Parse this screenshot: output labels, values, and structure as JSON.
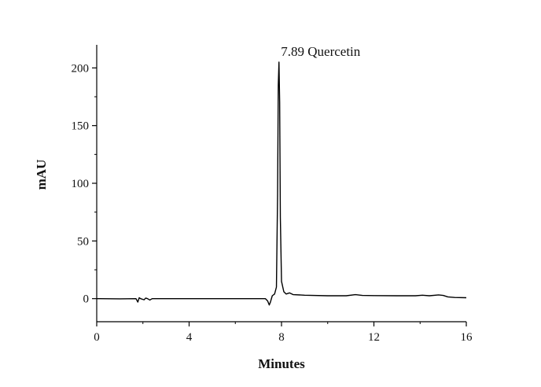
{
  "chart_data": {
    "type": "line",
    "xlabel": "Minutes",
    "ylabel": "mAU",
    "xlim": [
      0,
      16
    ],
    "ylim": [
      -20,
      220
    ],
    "xticks": [
      0,
      4,
      8,
      12,
      16
    ],
    "yticks": [
      0,
      50,
      100,
      150,
      200
    ],
    "grid": false,
    "annotation": {
      "text": "7.89 Quercetin",
      "x": 7.89,
      "y": 205
    },
    "series": [
      {
        "color": "#000000",
        "points": [
          [
            0.0,
            0.0
          ],
          [
            1.0,
            -0.2
          ],
          [
            1.7,
            0.0
          ],
          [
            1.78,
            -3.0
          ],
          [
            1.84,
            0.8
          ],
          [
            1.9,
            0.0
          ],
          [
            2.05,
            -1.0
          ],
          [
            2.12,
            0.5
          ],
          [
            2.2,
            0.0
          ],
          [
            2.3,
            -1.2
          ],
          [
            2.4,
            0.0
          ],
          [
            3.0,
            0.0
          ],
          [
            4.0,
            0.0
          ],
          [
            5.0,
            0.0
          ],
          [
            6.0,
            0.0
          ],
          [
            7.0,
            0.0
          ],
          [
            7.3,
            0.0
          ],
          [
            7.4,
            -2.0
          ],
          [
            7.47,
            -5.5
          ],
          [
            7.52,
            -3.0
          ],
          [
            7.6,
            2.5
          ],
          [
            7.7,
            4.0
          ],
          [
            7.78,
            10.0
          ],
          [
            7.83,
            90.0
          ],
          [
            7.86,
            185.0
          ],
          [
            7.89,
            205.0
          ],
          [
            7.92,
            170.0
          ],
          [
            7.95,
            70.0
          ],
          [
            8.0,
            15.0
          ],
          [
            8.1,
            6.0
          ],
          [
            8.2,
            4.0
          ],
          [
            8.35,
            5.0
          ],
          [
            8.5,
            3.5
          ],
          [
            9.0,
            3.0
          ],
          [
            10.0,
            2.5
          ],
          [
            10.8,
            2.5
          ],
          [
            11.2,
            3.5
          ],
          [
            11.5,
            2.8
          ],
          [
            12.0,
            2.6
          ],
          [
            13.0,
            2.5
          ],
          [
            13.8,
            2.5
          ],
          [
            14.1,
            3.0
          ],
          [
            14.4,
            2.5
          ],
          [
            14.8,
            3.2
          ],
          [
            15.0,
            2.8
          ],
          [
            15.2,
            1.5
          ],
          [
            15.5,
            1.0
          ],
          [
            16.0,
            0.8
          ]
        ]
      }
    ]
  }
}
